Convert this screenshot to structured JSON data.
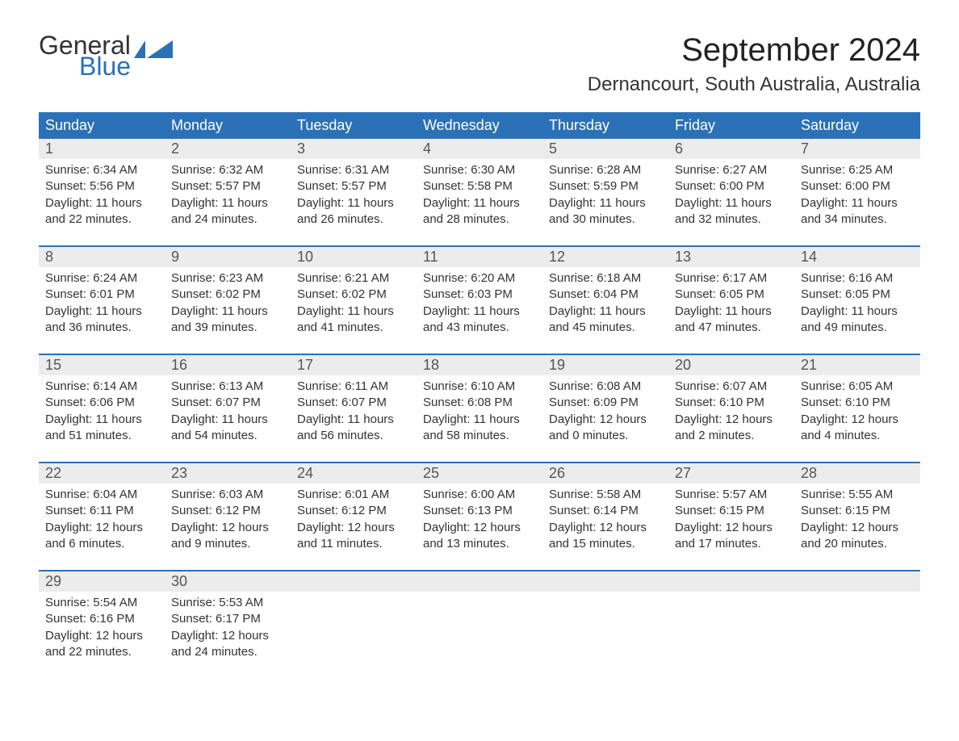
{
  "logo": {
    "general": "General",
    "blue": "Blue",
    "flag_color": "#2b71b8"
  },
  "title": "September 2024",
  "location": "Dernancourt, South Australia, Australia",
  "colors": {
    "header_bg": "#2b71b8",
    "header_text": "#ffffff",
    "daynum_bg": "#ececec",
    "daynum_text": "#555555",
    "body_text": "#333333",
    "page_bg": "#ffffff",
    "rule": "#2b71b8"
  },
  "fonts": {
    "title_size": 40,
    "location_size": 24,
    "dow_size": 18,
    "daynum_size": 18,
    "body_size": 15
  },
  "dow": [
    "Sunday",
    "Monday",
    "Tuesday",
    "Wednesday",
    "Thursday",
    "Friday",
    "Saturday"
  ],
  "days": {
    "1": {
      "sunrise": "6:34 AM",
      "sunset": "5:56 PM",
      "dl_h": 11,
      "dl_m": 22
    },
    "2": {
      "sunrise": "6:32 AM",
      "sunset": "5:57 PM",
      "dl_h": 11,
      "dl_m": 24
    },
    "3": {
      "sunrise": "6:31 AM",
      "sunset": "5:57 PM",
      "dl_h": 11,
      "dl_m": 26
    },
    "4": {
      "sunrise": "6:30 AM",
      "sunset": "5:58 PM",
      "dl_h": 11,
      "dl_m": 28
    },
    "5": {
      "sunrise": "6:28 AM",
      "sunset": "5:59 PM",
      "dl_h": 11,
      "dl_m": 30
    },
    "6": {
      "sunrise": "6:27 AM",
      "sunset": "6:00 PM",
      "dl_h": 11,
      "dl_m": 32
    },
    "7": {
      "sunrise": "6:25 AM",
      "sunset": "6:00 PM",
      "dl_h": 11,
      "dl_m": 34
    },
    "8": {
      "sunrise": "6:24 AM",
      "sunset": "6:01 PM",
      "dl_h": 11,
      "dl_m": 36
    },
    "9": {
      "sunrise": "6:23 AM",
      "sunset": "6:02 PM",
      "dl_h": 11,
      "dl_m": 39
    },
    "10": {
      "sunrise": "6:21 AM",
      "sunset": "6:02 PM",
      "dl_h": 11,
      "dl_m": 41
    },
    "11": {
      "sunrise": "6:20 AM",
      "sunset": "6:03 PM",
      "dl_h": 11,
      "dl_m": 43
    },
    "12": {
      "sunrise": "6:18 AM",
      "sunset": "6:04 PM",
      "dl_h": 11,
      "dl_m": 45
    },
    "13": {
      "sunrise": "6:17 AM",
      "sunset": "6:05 PM",
      "dl_h": 11,
      "dl_m": 47
    },
    "14": {
      "sunrise": "6:16 AM",
      "sunset": "6:05 PM",
      "dl_h": 11,
      "dl_m": 49
    },
    "15": {
      "sunrise": "6:14 AM",
      "sunset": "6:06 PM",
      "dl_h": 11,
      "dl_m": 51
    },
    "16": {
      "sunrise": "6:13 AM",
      "sunset": "6:07 PM",
      "dl_h": 11,
      "dl_m": 54
    },
    "17": {
      "sunrise": "6:11 AM",
      "sunset": "6:07 PM",
      "dl_h": 11,
      "dl_m": 56
    },
    "18": {
      "sunrise": "6:10 AM",
      "sunset": "6:08 PM",
      "dl_h": 11,
      "dl_m": 58
    },
    "19": {
      "sunrise": "6:08 AM",
      "sunset": "6:09 PM",
      "dl_h": 12,
      "dl_m": 0
    },
    "20": {
      "sunrise": "6:07 AM",
      "sunset": "6:10 PM",
      "dl_h": 12,
      "dl_m": 2
    },
    "21": {
      "sunrise": "6:05 AM",
      "sunset": "6:10 PM",
      "dl_h": 12,
      "dl_m": 4
    },
    "22": {
      "sunrise": "6:04 AM",
      "sunset": "6:11 PM",
      "dl_h": 12,
      "dl_m": 6
    },
    "23": {
      "sunrise": "6:03 AM",
      "sunset": "6:12 PM",
      "dl_h": 12,
      "dl_m": 9
    },
    "24": {
      "sunrise": "6:01 AM",
      "sunset": "6:12 PM",
      "dl_h": 12,
      "dl_m": 11
    },
    "25": {
      "sunrise": "6:00 AM",
      "sunset": "6:13 PM",
      "dl_h": 12,
      "dl_m": 13
    },
    "26": {
      "sunrise": "5:58 AM",
      "sunset": "6:14 PM",
      "dl_h": 12,
      "dl_m": 15
    },
    "27": {
      "sunrise": "5:57 AM",
      "sunset": "6:15 PM",
      "dl_h": 12,
      "dl_m": 17
    },
    "28": {
      "sunrise": "5:55 AM",
      "sunset": "6:15 PM",
      "dl_h": 12,
      "dl_m": 20
    },
    "29": {
      "sunrise": "5:54 AM",
      "sunset": "6:16 PM",
      "dl_h": 12,
      "dl_m": 22
    },
    "30": {
      "sunrise": "5:53 AM",
      "sunset": "6:17 PM",
      "dl_h": 12,
      "dl_m": 24
    }
  },
  "weeks": [
    [
      1,
      2,
      3,
      4,
      5,
      6,
      7
    ],
    [
      8,
      9,
      10,
      11,
      12,
      13,
      14
    ],
    [
      15,
      16,
      17,
      18,
      19,
      20,
      21
    ],
    [
      22,
      23,
      24,
      25,
      26,
      27,
      28
    ],
    [
      29,
      30,
      null,
      null,
      null,
      null,
      null
    ]
  ],
  "labels": {
    "sunrise_prefix": "Sunrise: ",
    "sunset_prefix": "Sunset: ",
    "daylight_prefix": "Daylight: ",
    "hours_word": " hours",
    "and_word": "and ",
    "minutes_word": " minutes."
  }
}
